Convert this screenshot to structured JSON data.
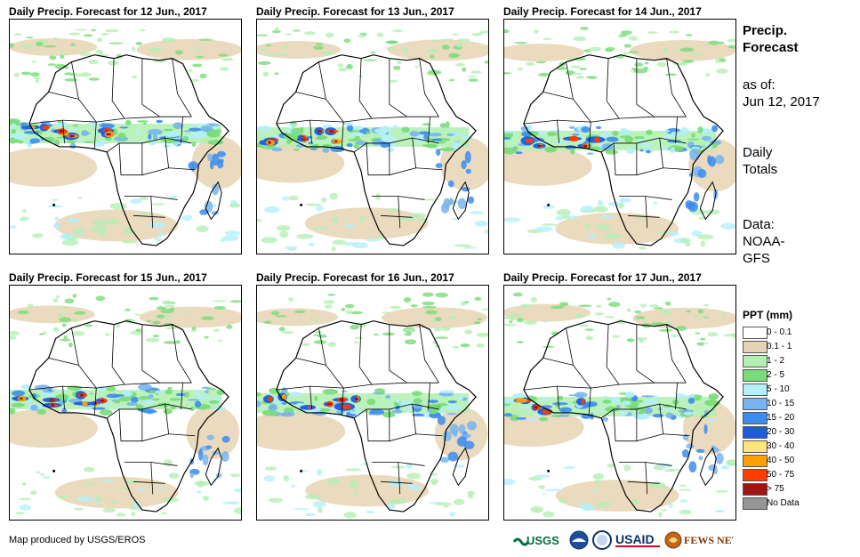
{
  "panels": [
    {
      "title": "Daily Precip. Forecast for 12 Jun., 2017"
    },
    {
      "title": "Daily Precip. Forecast for 13 Jun., 2017"
    },
    {
      "title": "Daily Precip. Forecast for 14 Jun., 2017"
    },
    {
      "title": "Daily Precip. Forecast for 15 Jun., 2017"
    },
    {
      "title": "Daily Precip. Forecast for 16 Jun., 2017"
    },
    {
      "title": "Daily Precip. Forecast for 17 Jun., 2017"
    }
  ],
  "sidebar": {
    "title_line1": "Precip.",
    "title_line2": "Forecast",
    "asof_label": "as of:",
    "asof_date": "Jun 12, 2017",
    "totals_line1": "Daily",
    "totals_line2": "Totals",
    "data_line1": "Data:",
    "data_line2": "NOAA-",
    "data_line3": "GFS"
  },
  "legend": {
    "title": "PPT (mm)",
    "items": [
      {
        "label": "0 - 0.1",
        "color": "#ffffff"
      },
      {
        "label": "0.1 - 1",
        "color": "#e6d3b3"
      },
      {
        "label": "1 - 2",
        "color": "#b4f0b4"
      },
      {
        "label": "2 - 5",
        "color": "#78dc78"
      },
      {
        "label": "5 - 10",
        "color": "#b4f0fa"
      },
      {
        "label": "10 - 15",
        "color": "#78b4f0"
      },
      {
        "label": "15 - 20",
        "color": "#3c8cf0"
      },
      {
        "label": "20 - 30",
        "color": "#1e5adc"
      },
      {
        "label": "30 - 40",
        "color": "#ffe678"
      },
      {
        "label": "40 - 50",
        "color": "#ffa000"
      },
      {
        "label": "50 - 75",
        "color": "#ff3c00"
      },
      {
        "label": "> 75",
        "color": "#a01414"
      },
      {
        "label": "No Data",
        "color": "#969696"
      }
    ]
  },
  "footer": {
    "credit": "Map produced by USGS/EROS"
  },
  "logos": {
    "usgs": "USGS",
    "noaa": "NOAA",
    "usaid": "USAID",
    "fewsnet": "FEWS NET"
  }
}
